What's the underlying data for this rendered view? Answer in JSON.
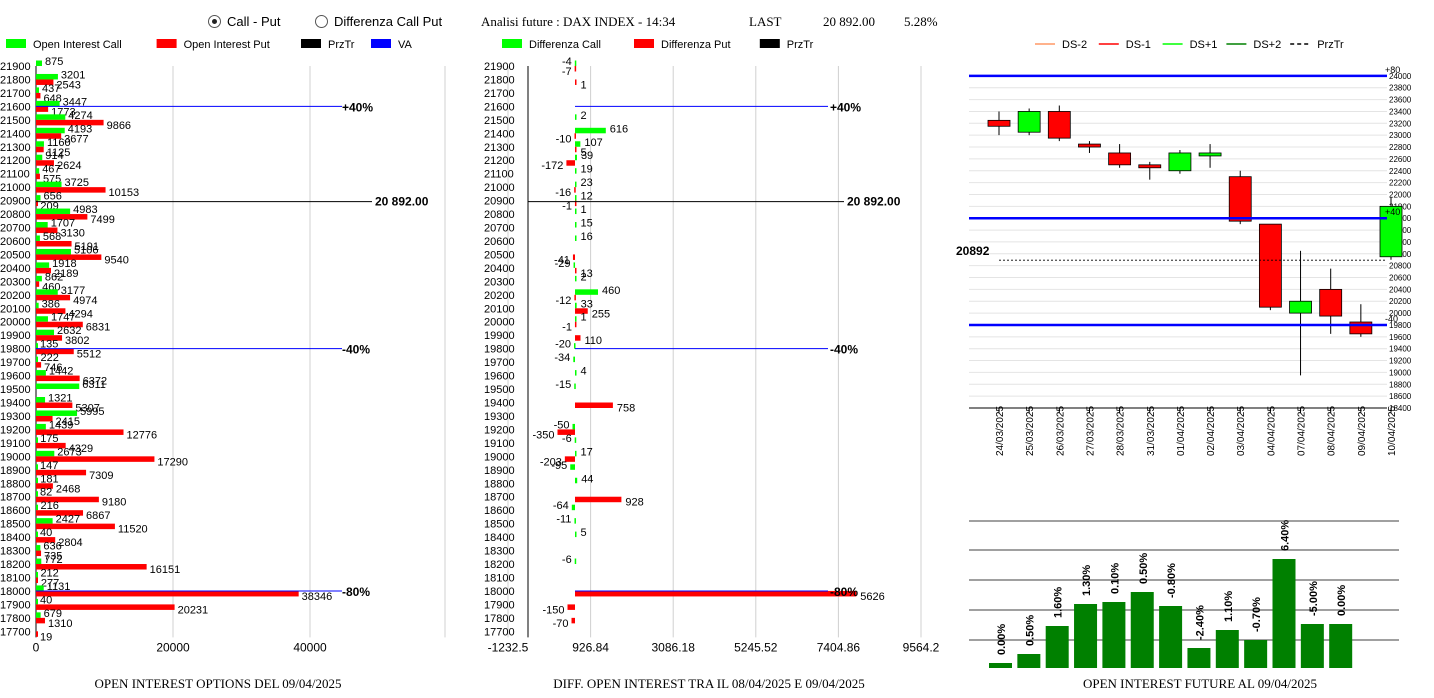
{
  "header": {
    "radio_callput": "Call - Put",
    "radio_diff": "Differenza Call Put",
    "title": "Analisi future : DAX INDEX - 14:34",
    "last_label": "LAST",
    "last_value": "20 892.00",
    "change": "5.28%"
  },
  "footers": {
    "left": "OPEN INTEREST OPTIONS DEL 09/04/2025",
    "middle": "DIFF. OPEN INTEREST TRA IL 08/04/2025 E 09/04/2025",
    "right": "OPEN INTEREST FUTURE AL 09/04/2025"
  },
  "colors": {
    "call": "#00ff00",
    "put": "#ff0000",
    "przt": "#000000",
    "va": "#0000ff",
    "dark_green": "#008000"
  },
  "chart_data": [
    {
      "type": "bar",
      "orientation": "horizontal",
      "legend": [
        "Open Interest Call",
        "Open Interest Put",
        "PrzTr",
        "VA"
      ],
      "strikes": [
        21900,
        21800,
        21700,
        21600,
        21500,
        21400,
        21300,
        21200,
        21100,
        21000,
        20900,
        20800,
        20700,
        20600,
        20500,
        20400,
        20300,
        20200,
        20100,
        20000,
        19900,
        19800,
        19700,
        19600,
        19500,
        19400,
        19300,
        19200,
        19100,
        19000,
        18900,
        18800,
        18700,
        18600,
        18500,
        18400,
        18300,
        18200,
        18100,
        18000,
        17900,
        17800,
        17700
      ],
      "series": [
        {
          "name": "Open Interest Call",
          "values": [
            875,
            3201,
            437,
            3447,
            4274,
            4193,
            1160,
            914,
            467,
            3725,
            656,
            4983,
            1707,
            568,
            5106,
            1918,
            862,
            3177,
            386,
            1747,
            2632,
            135,
            222,
            1442,
            6311,
            1321,
            5995,
            1439,
            175,
            2673,
            147,
            181,
            82,
            216,
            2427,
            40,
            636,
            772,
            212,
            1131,
            40,
            679,
            0
          ]
        },
        {
          "name": "Open Interest Put",
          "values": [
            0,
            2543,
            648,
            1773,
            9866,
            3677,
            1125,
            2624,
            575,
            10153,
            209,
            7499,
            3130,
            5191,
            9540,
            2189,
            460,
            4974,
            4294,
            6831,
            3802,
            5512,
            746,
            6372,
            0,
            5307,
            2415,
            12776,
            4329,
            17290,
            7309,
            2468,
            9180,
            6867,
            11520,
            2804,
            735,
            16151,
            277,
            38346,
            20231,
            1310,
            19
          ]
        }
      ],
      "reference_lines": [
        {
          "strike": 21600,
          "label": "+40%",
          "kind": "VA"
        },
        {
          "strike": 20900,
          "label": "20 892.00",
          "kind": "PrzTr"
        },
        {
          "strike": 19800,
          "label": "-40%",
          "kind": "VA"
        },
        {
          "strike": 18000,
          "label": "-80%",
          "kind": "VA"
        }
      ],
      "x_ticks": [
        "0",
        "20000",
        "40000"
      ],
      "xlim": [
        0,
        45000
      ]
    },
    {
      "type": "bar",
      "orientation": "horizontal",
      "legend": [
        "Differenza Call",
        "Differenza Put",
        "PrzTr"
      ],
      "strikes": [
        21900,
        21800,
        21700,
        21600,
        21500,
        21400,
        21300,
        21200,
        21100,
        21000,
        20900,
        20800,
        20700,
        20600,
        20500,
        20400,
        20300,
        20200,
        20100,
        20000,
        19900,
        19800,
        19700,
        19600,
        19500,
        19400,
        19300,
        19200,
        19100,
        19000,
        18900,
        18800,
        18700,
        18600,
        18500,
        18400,
        18300,
        18200,
        18100,
        18000,
        17900,
        17800,
        17700
      ],
      "series": [
        {
          "name": "Differenza Call",
          "values": [
            -4,
            null,
            null,
            null,
            2,
            616,
            107,
            39,
            19,
            23,
            12,
            1,
            15,
            16,
            null,
            -29,
            2,
            460,
            33,
            1,
            null,
            -20,
            -34,
            4,
            -15,
            null,
            null,
            -50,
            -6,
            17,
            -95,
            44,
            null,
            -64,
            -11,
            5,
            null,
            -6,
            null,
            null,
            null,
            null,
            null
          ]
        },
        {
          "name": "Differenza Put",
          "values": [
            -7,
            1,
            null,
            null,
            null,
            -10,
            5,
            -172,
            null,
            -16,
            -1,
            null,
            null,
            null,
            -41,
            13,
            null,
            -12,
            255,
            -1,
            110,
            null,
            null,
            null,
            null,
            758,
            null,
            -350,
            null,
            -203,
            null,
            null,
            928,
            null,
            null,
            null,
            null,
            null,
            null,
            5626,
            -150,
            -70,
            null
          ]
        }
      ],
      "reference_lines": [
        {
          "strike": 21600,
          "label": "+40%"
        },
        {
          "strike": 20900,
          "label": "20 892.00"
        },
        {
          "strike": 19800,
          "label": "-40%"
        },
        {
          "strike": 18000,
          "label": "-80%"
        }
      ],
      "x_ticks": [
        "-1232.5",
        "926.84",
        "3086.18",
        "5245.52",
        "7404.86",
        "9564.2"
      ],
      "xlim": [
        -1232.5,
        9564.2
      ]
    },
    {
      "type": "candlestick",
      "legend": [
        "DS-2",
        "DS-1",
        "DS+1",
        "DS+2",
        "PrzTr"
      ],
      "dates": [
        "24/03/2025",
        "25/03/2025",
        "26/03/2025",
        "27/03/2025",
        "28/03/2025",
        "31/03/2025",
        "01/04/2025",
        "02/04/2025",
        "03/04/2025",
        "04/04/2025",
        "07/04/2025",
        "08/04/2025",
        "09/04/2025",
        "10/04/2025"
      ],
      "open": [
        23250,
        23050,
        23400,
        22850,
        22700,
        22500,
        22400,
        22650,
        22300,
        21500,
        20000,
        20400,
        19850,
        20950
      ],
      "close": [
        23150,
        23400,
        22950,
        22800,
        22500,
        22450,
        22700,
        22700,
        21550,
        20100,
        20200,
        19950,
        19650,
        21800
      ],
      "high": [
        23400,
        23450,
        23500,
        22900,
        22850,
        22550,
        22750,
        22850,
        22400,
        21500,
        21050,
        20750,
        20150,
        21950
      ],
      "low": [
        23000,
        23000,
        22900,
        22700,
        22450,
        22250,
        22350,
        22450,
        21500,
        20050,
        18950,
        19650,
        19600,
        20900
      ],
      "reference_lines": [
        {
          "value": 24000,
          "label": "+80"
        },
        {
          "value": 21600,
          "label": "+40"
        },
        {
          "value": 20892,
          "label": "20892"
        },
        {
          "value": 19800,
          "label": "-40"
        }
      ],
      "y_ticks": [
        24000,
        23800,
        23600,
        23400,
        23200,
        23000,
        22800,
        22600,
        22400,
        22200,
        22000,
        21800,
        21600,
        21400,
        21200,
        21000,
        20800,
        20600,
        20400,
        20200,
        20000,
        19800,
        19600,
        19400,
        19200,
        19000,
        18800,
        18600,
        18400
      ],
      "ylim": [
        18400,
        24200
      ]
    },
    {
      "type": "bar",
      "categories": [
        "24/03/2025",
        "25/03/2025",
        "26/03/2025",
        "27/03/2025",
        "28/03/2025",
        "31/03/2025",
        "01/04/2025",
        "02/04/2025",
        "03/04/2025",
        "04/04/2025",
        "07/04/2025",
        "08/04/2025",
        "09/04/2025"
      ],
      "labels": [
        "0.00%",
        "0.50%",
        "1.60%",
        "1.30%",
        "0.10%",
        "0.50%",
        "-0.80%",
        "-2.40%",
        "1.10%",
        "-0.70%",
        "6.40%",
        "-5.00%",
        "0.00%"
      ],
      "values": [
        5,
        14,
        42,
        64,
        66,
        76,
        62,
        20,
        38,
        28,
        109,
        44,
        44
      ]
    }
  ]
}
